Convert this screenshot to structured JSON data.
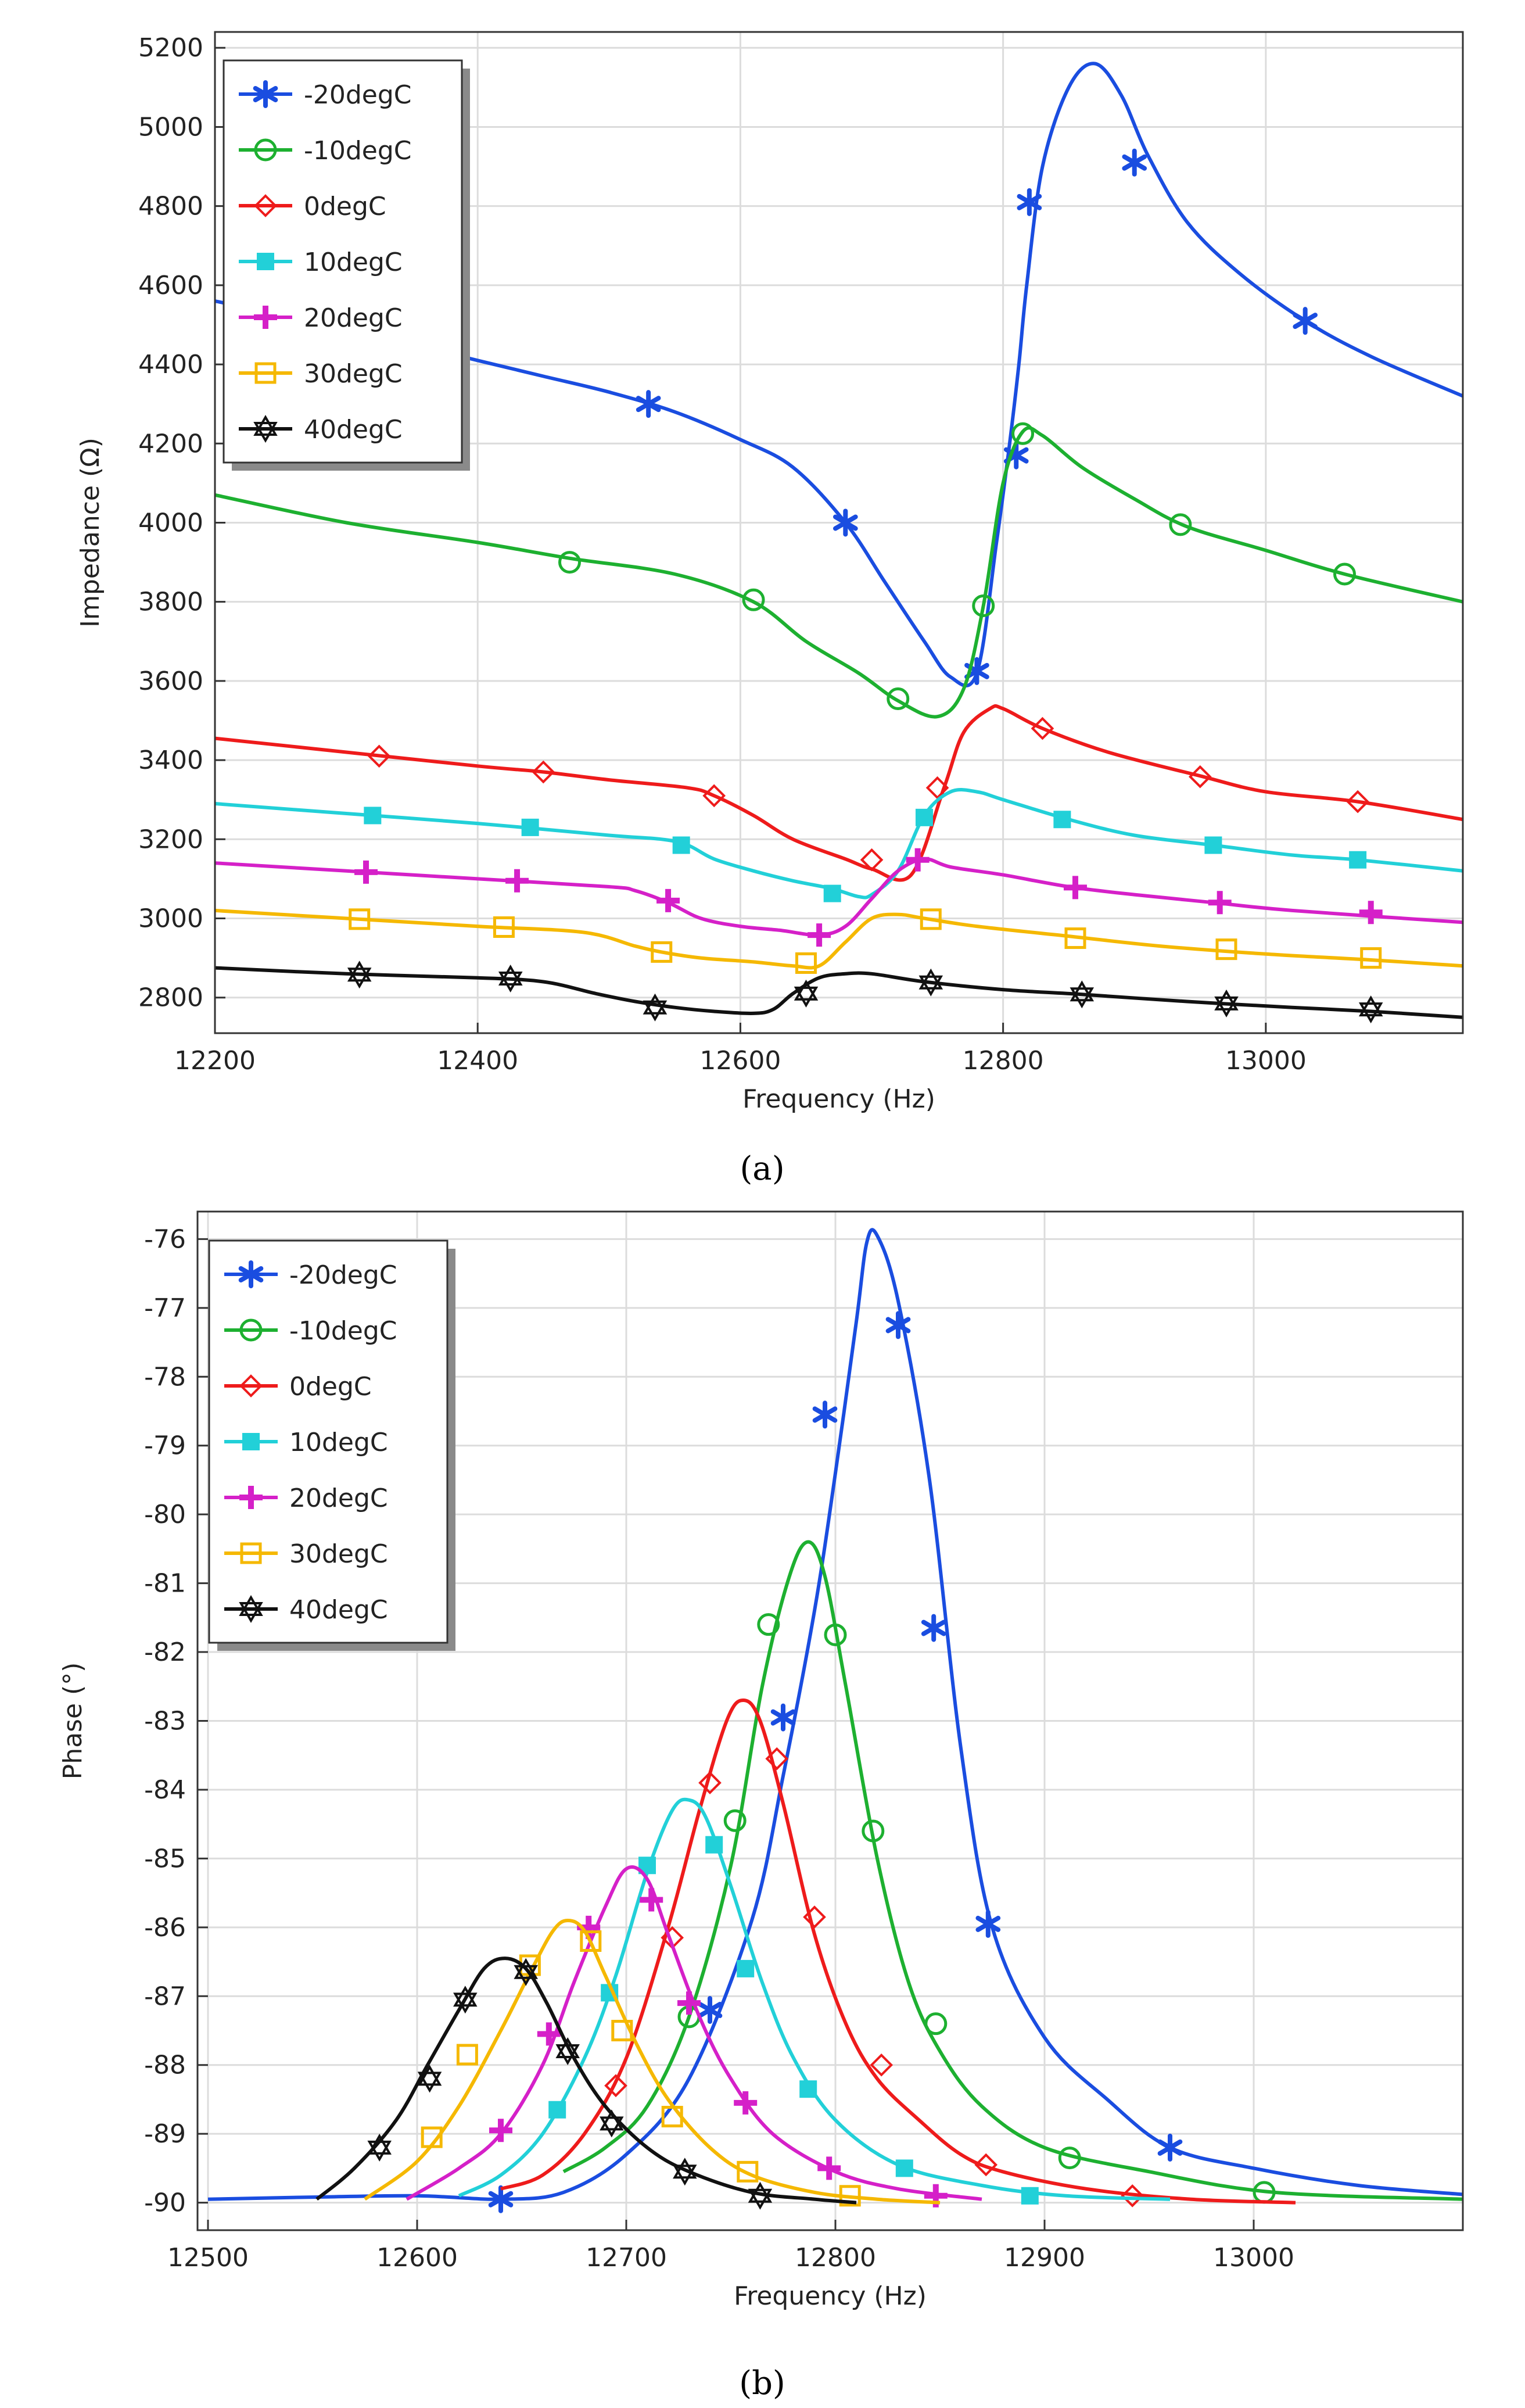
{
  "figure": {
    "caption_a": "(a)",
    "caption_b": "(b)"
  },
  "legend_labels": [
    "-20degC",
    "-10degC",
    "0degC",
    "10degC",
    "20degC",
    "30degC",
    "40degC"
  ],
  "series_style": {
    "-20degC": {
      "color": "#1a4de0",
      "marker": "asterisk"
    },
    "-10degC": {
      "color": "#1db030",
      "marker": "circle"
    },
    "0degC": {
      "color": "#ee1b1b",
      "marker": "diamond"
    },
    "10degC": {
      "color": "#22d0d8",
      "marker": "square-filled"
    },
    "20degC": {
      "color": "#d520c8",
      "marker": "plus"
    },
    "30degC": {
      "color": "#f5b800",
      "marker": "square"
    },
    "40degC": {
      "color": "#111111",
      "marker": "star"
    }
  },
  "chart_data": [
    {
      "id": "a",
      "type": "line",
      "title": "",
      "xlabel": "Frequency (Hz)",
      "ylabel": "Impedance (Ω)",
      "xlim": [
        12200,
        13150
      ],
      "ylim": [
        2710,
        5240
      ],
      "x_ticks": [
        12200,
        12400,
        12600,
        12800,
        13000
      ],
      "y_ticks": [
        2800,
        3000,
        3200,
        3400,
        3600,
        3800,
        4000,
        4200,
        4400,
        4600,
        4800,
        5000,
        5200
      ],
      "grid": true,
      "legend_position": "top-left",
      "series": [
        {
          "name": "-20degC",
          "x": [
            12200,
            12300,
            12400,
            12450,
            12500,
            12550,
            12600,
            12640,
            12680,
            12710,
            12740,
            12760,
            12780,
            12795,
            12805,
            12812,
            12818,
            12830,
            12850,
            12870,
            12890,
            12910,
            12940,
            12980,
            13030,
            13080,
            13150
          ],
          "y": [
            4560,
            4490,
            4410,
            4370,
            4330,
            4280,
            4210,
            4140,
            4000,
            3850,
            3700,
            3610,
            3620,
            3950,
            4200,
            4400,
            4600,
            4900,
            5100,
            5160,
            5080,
            4930,
            4760,
            4630,
            4510,
            4420,
            4320
          ],
          "markers_x": [
            12530,
            12680,
            12780,
            12810,
            12820,
            12900,
            13030
          ],
          "markers_y": [
            4300,
            4000,
            3625,
            4170,
            4810,
            4910,
            4510
          ]
        },
        {
          "name": "-10degC",
          "x": [
            12200,
            12300,
            12400,
            12470,
            12550,
            12610,
            12650,
            12690,
            12720,
            12750,
            12770,
            12785,
            12800,
            12815,
            12830,
            12860,
            12900,
            12940,
            13000,
            13060,
            13150
          ],
          "y": [
            4070,
            4000,
            3950,
            3910,
            3870,
            3800,
            3700,
            3620,
            3550,
            3510,
            3580,
            3790,
            4100,
            4230,
            4220,
            4140,
            4060,
            3990,
            3930,
            3870,
            3800
          ],
          "markers_x": [
            12470,
            12610,
            12720,
            12785,
            12815,
            12935,
            13060
          ],
          "markers_y": [
            3900,
            3805,
            3555,
            3790,
            4225,
            3995,
            3870
          ]
        },
        {
          "name": "0degC",
          "x": [
            12200,
            12300,
            12400,
            12450,
            12500,
            12560,
            12580,
            12610,
            12640,
            12680,
            12700,
            12730,
            12755,
            12770,
            12790,
            12800,
            12830,
            12880,
            12950,
            13000,
            13070,
            13150
          ],
          "y": [
            3455,
            3420,
            3385,
            3370,
            3350,
            3330,
            3310,
            3260,
            3200,
            3150,
            3125,
            3110,
            3330,
            3470,
            3530,
            3530,
            3480,
            3420,
            3360,
            3320,
            3295,
            3250
          ],
          "markers_x": [
            12325,
            12450,
            12580,
            12700,
            12750,
            12830,
            12950,
            13070
          ],
          "markers_y": [
            3410,
            3370,
            3310,
            3148,
            3330,
            3480,
            3358,
            3295
          ]
        },
        {
          "name": "10degC",
          "x": [
            12200,
            12300,
            12400,
            12500,
            12540,
            12560,
            12580,
            12610,
            12640,
            12670,
            12690,
            12700,
            12720,
            12740,
            12760,
            12780,
            12800,
            12850,
            12900,
            12960,
            13020,
            13070,
            13150
          ],
          "y": [
            3290,
            3265,
            3240,
            3210,
            3200,
            3185,
            3150,
            3120,
            3095,
            3075,
            3055,
            3060,
            3120,
            3260,
            3320,
            3320,
            3300,
            3250,
            3210,
            3185,
            3160,
            3148,
            3120
          ],
          "markers_x": [
            12320,
            12440,
            12555,
            12670,
            12740,
            12845,
            12960,
            13070
          ],
          "markers_y": [
            3260,
            3230,
            3185,
            3063,
            3255,
            3250,
            3185,
            3148
          ]
        },
        {
          "name": "20degC",
          "x": [
            12200,
            12300,
            12400,
            12500,
            12520,
            12545,
            12570,
            12600,
            12630,
            12660,
            12680,
            12700,
            12720,
            12740,
            12760,
            12800,
            12850,
            12900,
            12960,
            13020,
            13150
          ],
          "y": [
            3140,
            3120,
            3100,
            3080,
            3070,
            3040,
            3000,
            2980,
            2970,
            2958,
            2980,
            3050,
            3120,
            3150,
            3130,
            3110,
            3080,
            3060,
            3040,
            3020,
            2990
          ],
          "markers_x": [
            12315,
            12430,
            12545,
            12660,
            12735,
            12855,
            12965,
            13080
          ],
          "markers_y": [
            3117,
            3095,
            3045,
            2958,
            3148,
            3078,
            3040,
            3015
          ]
        },
        {
          "name": "30degC",
          "x": [
            12200,
            12300,
            12400,
            12480,
            12520,
            12540,
            12570,
            12610,
            12640,
            12660,
            12680,
            12700,
            12720,
            12740,
            12780,
            12850,
            12920,
            13000,
            13080,
            13150
          ],
          "y": [
            3020,
            3000,
            2980,
            2965,
            2930,
            2915,
            2900,
            2890,
            2880,
            2880,
            2940,
            3000,
            3010,
            3000,
            2980,
            2955,
            2930,
            2910,
            2895,
            2880
          ],
          "markers_x": [
            12310,
            12420,
            12540,
            12650,
            12745,
            12855,
            12970,
            13080
          ],
          "markers_y": [
            2998,
            2978,
            2915,
            2887,
            2998,
            2950,
            2922,
            2900
          ]
        },
        {
          "name": "40degC",
          "x": [
            12200,
            12300,
            12400,
            12450,
            12490,
            12520,
            12550,
            12580,
            12610,
            12625,
            12640,
            12660,
            12680,
            12700,
            12740,
            12800,
            12860,
            12940,
            13020,
            13080,
            13150
          ],
          "y": [
            2875,
            2860,
            2850,
            2840,
            2810,
            2790,
            2775,
            2765,
            2760,
            2770,
            2810,
            2850,
            2860,
            2860,
            2840,
            2820,
            2808,
            2790,
            2775,
            2765,
            2750
          ],
          "markers_x": [
            12310,
            12425,
            12535,
            12650,
            12745,
            12860,
            12970,
            13080
          ],
          "markers_y": [
            2858,
            2848,
            2775,
            2810,
            2838,
            2808,
            2785,
            2770
          ]
        }
      ]
    },
    {
      "id": "b",
      "type": "line",
      "title": "",
      "xlabel": "Frequency (Hz)",
      "ylabel": "Phase (°)",
      "xlim": [
        12495,
        13100
      ],
      "ylim": [
        -90.4,
        -75.6
      ],
      "x_ticks": [
        12500,
        12600,
        12700,
        12800,
        12900,
        13000
      ],
      "y_ticks": [
        -90,
        -89,
        -88,
        -87,
        -86,
        -85,
        -84,
        -83,
        -82,
        -81,
        -80,
        -79,
        -78,
        -77,
        -76
      ],
      "grid": true,
      "legend_position": "top-left",
      "series": [
        {
          "name": "-20degC",
          "x": [
            12500,
            12550,
            12600,
            12640,
            12670,
            12700,
            12730,
            12760,
            12775,
            12790,
            12800,
            12810,
            12815,
            12820,
            12830,
            12845,
            12860,
            12875,
            12900,
            12930,
            12960,
            13000,
            13050,
            13100
          ],
          "y": [
            -89.95,
            -89.92,
            -89.9,
            -89.95,
            -89.85,
            -89.3,
            -88.2,
            -85.9,
            -83.8,
            -81.4,
            -79.4,
            -77.2,
            -76.05,
            -75.95,
            -76.9,
            -79.5,
            -83.4,
            -86.0,
            -87.6,
            -88.5,
            -89.2,
            -89.5,
            -89.75,
            -89.88
          ],
          "markers_x": [
            12640,
            12740,
            12775,
            12795,
            12830,
            12847,
            12873,
            12960
          ],
          "markers_y": [
            -89.95,
            -87.2,
            -82.95,
            -78.55,
            -77.25,
            -81.65,
            -85.95,
            -89.2
          ]
        },
        {
          "name": "-10degC",
          "x": [
            12670,
            12690,
            12710,
            12730,
            12750,
            12765,
            12778,
            12787,
            12795,
            12805,
            12820,
            12835,
            12850,
            12870,
            12900,
            12950,
            13010,
            13100
          ],
          "y": [
            -89.55,
            -89.2,
            -88.6,
            -87.3,
            -85.1,
            -82.5,
            -80.9,
            -80.4,
            -80.9,
            -82.5,
            -85.0,
            -86.8,
            -87.8,
            -88.6,
            -89.2,
            -89.55,
            -89.85,
            -89.95
          ],
          "markers_x": [
            12730,
            12752,
            12768,
            12800,
            12818,
            12848,
            12912,
            13005
          ],
          "markers_y": [
            -87.3,
            -84.45,
            -81.6,
            -81.75,
            -84.6,
            -87.4,
            -89.35,
            -89.85
          ]
        },
        {
          "name": "0degC",
          "x": [
            12640,
            12660,
            12680,
            12700,
            12720,
            12735,
            12748,
            12756,
            12764,
            12775,
            12790,
            12805,
            12820,
            12840,
            12860,
            12880,
            12920,
            12970,
            13020
          ],
          "y": [
            -89.8,
            -89.6,
            -89.0,
            -87.9,
            -86.0,
            -84.3,
            -83.0,
            -82.7,
            -83.0,
            -84.2,
            -86.1,
            -87.4,
            -88.2,
            -88.8,
            -89.3,
            -89.55,
            -89.8,
            -89.95,
            -90.0
          ],
          "markers_x": [
            12695,
            12722,
            12740,
            12772,
            12790,
            12822,
            12872,
            12942
          ],
          "markers_y": [
            -88.3,
            -86.15,
            -83.9,
            -83.55,
            -85.85,
            -88.0,
            -89.45,
            -89.9
          ]
        },
        {
          "name": "10degC",
          "x": [
            12620,
            12640,
            12660,
            12680,
            12695,
            12710,
            12722,
            12730,
            12738,
            12750,
            12765,
            12780,
            12800,
            12830,
            12870,
            12910,
            12960
          ],
          "y": [
            -89.9,
            -89.6,
            -89.0,
            -87.9,
            -86.7,
            -85.2,
            -84.3,
            -84.15,
            -84.4,
            -85.4,
            -86.8,
            -87.9,
            -88.8,
            -89.45,
            -89.75,
            -89.9,
            -89.95
          ],
          "markers_x": [
            12667,
            12692,
            12710,
            12742,
            12757,
            12787,
            12833,
            12893
          ],
          "markers_y": [
            -88.65,
            -86.95,
            -85.1,
            -84.8,
            -86.6,
            -88.35,
            -89.5,
            -89.9
          ]
        },
        {
          "name": "20degC",
          "x": [
            12595,
            12620,
            12640,
            12660,
            12675,
            12690,
            12700,
            12710,
            12720,
            12735,
            12750,
            12770,
            12800,
            12830,
            12870
          ],
          "y": [
            -89.95,
            -89.5,
            -89.0,
            -88.0,
            -86.8,
            -85.7,
            -85.15,
            -85.3,
            -86.1,
            -87.3,
            -88.2,
            -89.0,
            -89.55,
            -89.8,
            -89.95
          ],
          "markers_x": [
            12640,
            12663,
            12682,
            12712,
            12730,
            12757,
            12797,
            12848
          ],
          "markers_y": [
            -88.95,
            -87.55,
            -86.0,
            -85.6,
            -87.1,
            -88.55,
            -89.5,
            -89.9
          ]
        },
        {
          "name": "30degC",
          "x": [
            12575,
            12600,
            12620,
            12640,
            12655,
            12665,
            12672,
            12680,
            12690,
            12705,
            12720,
            12740,
            12760,
            12790,
            12820,
            12850
          ],
          "y": [
            -89.95,
            -89.4,
            -88.6,
            -87.5,
            -86.6,
            -86.05,
            -85.9,
            -86.05,
            -86.7,
            -87.7,
            -88.5,
            -89.2,
            -89.6,
            -89.85,
            -89.95,
            -90.0
          ],
          "markers_x": [
            12607,
            12624,
            12654,
            12683,
            12698,
            12722,
            12758,
            12807
          ],
          "markers_y": [
            -89.05,
            -87.85,
            -86.55,
            -86.2,
            -87.5,
            -88.75,
            -89.55,
            -89.9
          ]
        },
        {
          "name": "40degC",
          "x": [
            12552,
            12570,
            12590,
            12605,
            12620,
            12632,
            12642,
            12652,
            12662,
            12675,
            12690,
            12710,
            12730,
            12760,
            12790,
            12810
          ],
          "y": [
            -89.95,
            -89.5,
            -88.8,
            -88.0,
            -87.2,
            -86.6,
            -86.45,
            -86.6,
            -87.1,
            -87.9,
            -88.6,
            -89.2,
            -89.55,
            -89.85,
            -89.95,
            -90.0
          ],
          "markers_x": [
            12582,
            12606,
            12623,
            12652,
            12672,
            12693,
            12728,
            12764
          ],
          "markers_y": [
            -89.2,
            -88.2,
            -87.05,
            -86.65,
            -87.8,
            -88.85,
            -89.55,
            -89.9
          ]
        }
      ]
    }
  ]
}
